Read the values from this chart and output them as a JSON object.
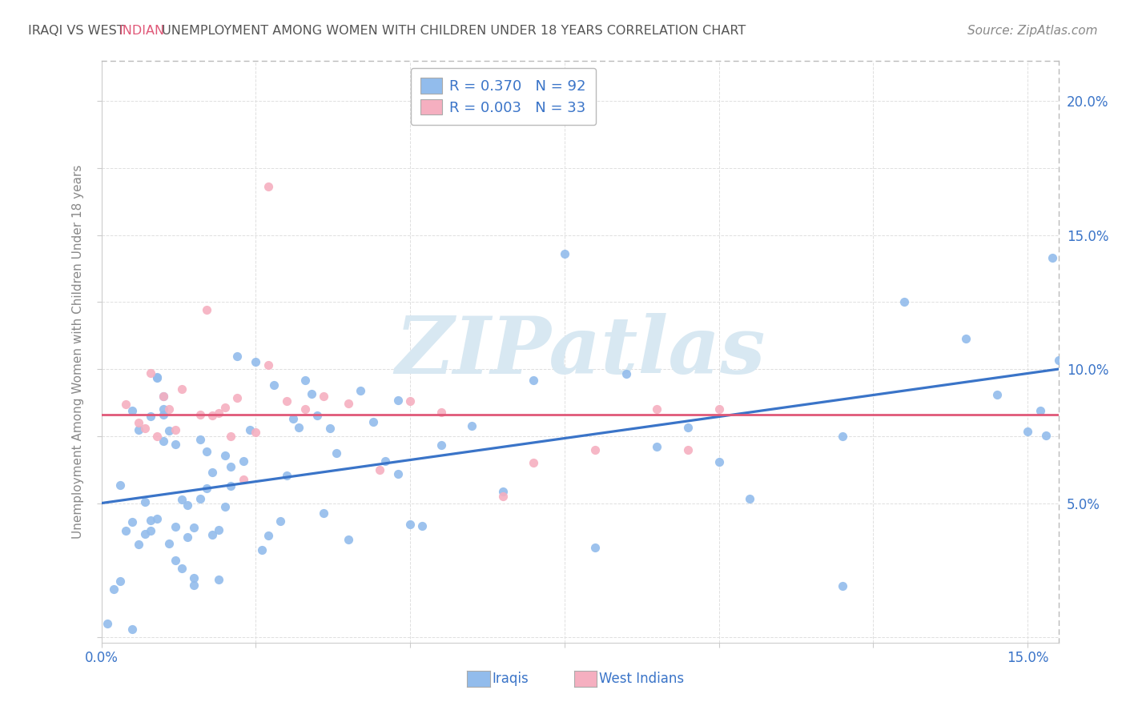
{
  "title_part1": "IRAQI VS WEST ",
  "title_part2": "INDIAN",
  "title_part3": " UNEMPLOYMENT AMONG WOMEN WITH CHILDREN UNDER 18 YEARS CORRELATION CHART",
  "source": "Source: ZipAtlas.com",
  "ylabel": "Unemployment Among Women with Children Under 18 years",
  "xlim": [
    0.0,
    0.155
  ],
  "ylim": [
    -0.002,
    0.215
  ],
  "R_iraqi": 0.37,
  "N_iraqi": 92,
  "R_westindian": 0.003,
  "N_westindian": 33,
  "iraqi_color": "#92bcec",
  "westindian_color": "#f5afc0",
  "line_iraqi_color": "#3a74c8",
  "line_westindian_color": "#e05878",
  "background_color": "#ffffff",
  "watermark_color": "#d8e8f2",
  "grid_color": "#e0e0e0",
  "title_color_normal": "#555555",
  "title_color_indian": "#e05878",
  "axis_tick_color": "#3a74c8",
  "ylabel_color": "#888888",
  "legend_edge_color": "#bbbbbb",
  "source_color": "#888888",
  "iraqi_line_start_y": 0.05,
  "iraqi_line_end_y": 0.1,
  "westindian_line_y": 0.083,
  "seed": 123
}
